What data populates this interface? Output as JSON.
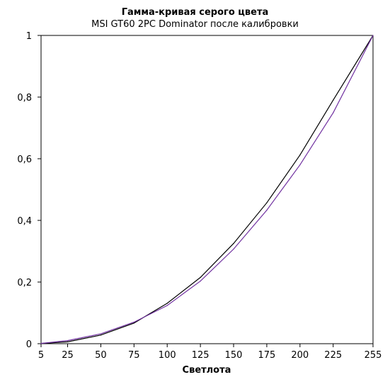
{
  "chart_data": {
    "type": "line",
    "title": "Гамма-кривая  серого цвета",
    "subtitle": "MSI GT60 2PC Dominator после калибровки",
    "xlabel": "Светлота",
    "ylabel": "",
    "x": [
      5,
      25,
      50,
      75,
      100,
      125,
      150,
      175,
      200,
      225,
      255
    ],
    "x_tick_labels": [
      "5",
      "25",
      "50",
      "75",
      "100",
      "125",
      "150",
      "175",
      "200",
      "225",
      "255"
    ],
    "y_tick_labels": [
      "0",
      "0,2",
      "0,4",
      "0,6",
      "0,8",
      "1"
    ],
    "y_ticks": [
      0,
      0.2,
      0.4,
      0.6,
      0.8,
      1
    ],
    "xlim": [
      5,
      255
    ],
    "ylim": [
      0,
      1
    ],
    "grid": false,
    "series": [
      {
        "color": "#000000",
        "values": [
          0.001,
          0.006,
          0.028,
          0.067,
          0.131,
          0.215,
          0.325,
          0.457,
          0.612,
          0.79,
          1.0
        ]
      },
      {
        "color": "#7030a0",
        "values": [
          0.001,
          0.01,
          0.032,
          0.07,
          0.124,
          0.203,
          0.307,
          0.433,
          0.58,
          0.749,
          1.0
        ]
      }
    ]
  }
}
